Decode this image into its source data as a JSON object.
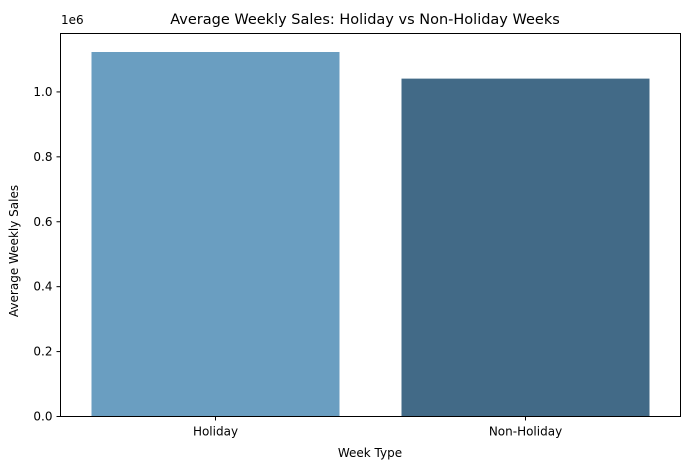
{
  "chart_data": {
    "type": "bar",
    "title": "Average Weekly Sales: Holiday vs Non-Holiday Weeks",
    "xlabel": "Week Type",
    "ylabel": "Average Weekly Sales",
    "offset_label": "1e6",
    "categories": [
      "Holiday",
      "Non-Holiday"
    ],
    "values": [
      1123000,
      1041000
    ],
    "colors": [
      "#6a9ec1",
      "#426a87"
    ],
    "ylim": [
      0,
      1180000
    ],
    "yticks": [
      0,
      200000,
      400000,
      600000,
      800000,
      1000000
    ],
    "ytick_labels": [
      "0.0",
      "0.2",
      "0.4",
      "0.6",
      "0.8",
      "1.0"
    ],
    "grid": false,
    "legend": "none"
  }
}
